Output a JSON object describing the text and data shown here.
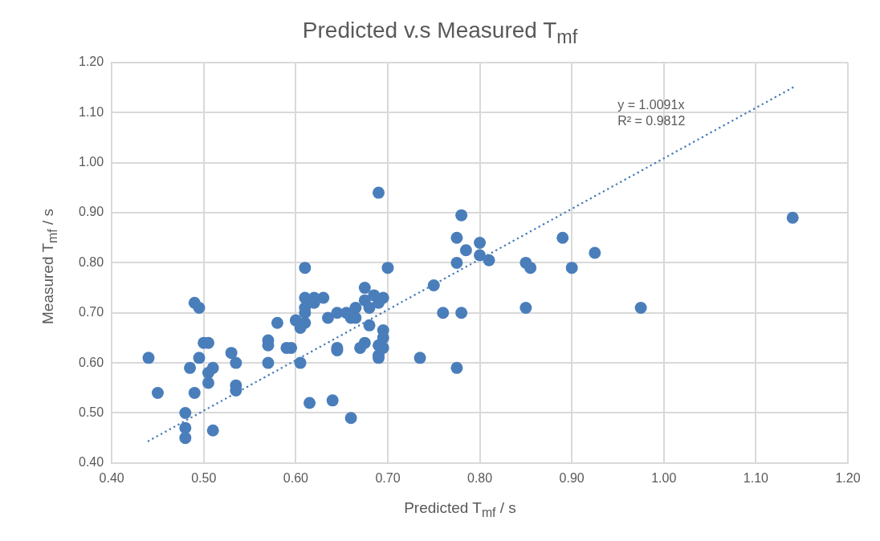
{
  "chart_data": {
    "type": "scatter",
    "title": "Predicted v.s Measured T$_{mf}$",
    "xlabel": "Predicted T$_{mf}$ / s",
    "ylabel": "Measured T$_{mf}$ / s",
    "xlim": [
      0.4,
      1.2
    ],
    "xticks": [
      {
        "value": 0.4,
        "label": "0.40"
      },
      {
        "value": 0.5,
        "label": "0.50"
      },
      {
        "value": 0.6,
        "label": "0.60"
      },
      {
        "value": 0.7,
        "label": "0.70"
      },
      {
        "value": 0.8,
        "label": "0.80"
      },
      {
        "value": 0.9,
        "label": "0.90"
      },
      {
        "value": 1.0,
        "label": "1.00"
      },
      {
        "value": 1.1,
        "label": "1.10"
      },
      {
        "value": 1.2,
        "label": "1.20"
      }
    ],
    "ylim": [
      0.4,
      1.2
    ],
    "yticks": [
      {
        "value": 0.4,
        "label": "0.40"
      },
      {
        "value": 0.5,
        "label": "0.50"
      },
      {
        "value": 0.6,
        "label": "0.60"
      },
      {
        "value": 0.7,
        "label": "0.70"
      },
      {
        "value": 0.8,
        "label": "0.80"
      },
      {
        "value": 0.9,
        "label": "0.90"
      },
      {
        "value": 1.0,
        "label": "1.00"
      },
      {
        "value": 1.1,
        "label": "1.10"
      },
      {
        "value": 1.2,
        "label": "1.20"
      }
    ],
    "grid": true,
    "legend": false,
    "annotations": [
      "y = 1.0091x",
      "R² = 0.9812"
    ],
    "series": [
      {
        "color": "#4a7ebb",
        "marker": "circle",
        "x": [
          0.44,
          0.45,
          0.48,
          0.48,
          0.48,
          0.485,
          0.49,
          0.49,
          0.495,
          0.495,
          0.5,
          0.505,
          0.505,
          0.505,
          0.51,
          0.51,
          0.53,
          0.535,
          0.535,
          0.535,
          0.57,
          0.57,
          0.57,
          0.58,
          0.59,
          0.595,
          0.6,
          0.605,
          0.605,
          0.61,
          0.61,
          0.61,
          0.61,
          0.61,
          0.615,
          0.62,
          0.62,
          0.63,
          0.635,
          0.64,
          0.645,
          0.645,
          0.645,
          0.655,
          0.66,
          0.66,
          0.665,
          0.665,
          0.67,
          0.675,
          0.675,
          0.675,
          0.68,
          0.68,
          0.685,
          0.69,
          0.69,
          0.69,
          0.69,
          0.695,
          0.695,
          0.695,
          0.695,
          0.69,
          0.7,
          0.735,
          0.75,
          0.76,
          0.775,
          0.775,
          0.775,
          0.78,
          0.78,
          0.785,
          0.8,
          0.8,
          0.81,
          0.85,
          0.85,
          0.855,
          0.89,
          0.9,
          0.925,
          0.975,
          1.14
        ],
        "values": [
          0.61,
          0.54,
          0.5,
          0.47,
          0.45,
          0.59,
          0.54,
          0.72,
          0.71,
          0.61,
          0.64,
          0.64,
          0.58,
          0.56,
          0.59,
          0.465,
          0.62,
          0.6,
          0.555,
          0.545,
          0.6,
          0.645,
          0.635,
          0.68,
          0.63,
          0.63,
          0.685,
          0.67,
          0.6,
          0.79,
          0.73,
          0.71,
          0.7,
          0.68,
          0.52,
          0.72,
          0.73,
          0.73,
          0.69,
          0.525,
          0.7,
          0.625,
          0.63,
          0.7,
          0.49,
          0.69,
          0.69,
          0.71,
          0.63,
          0.75,
          0.64,
          0.725,
          0.675,
          0.71,
          0.735,
          0.615,
          0.635,
          0.94,
          0.72,
          0.73,
          0.665,
          0.65,
          0.63,
          0.61,
          0.79,
          0.61,
          0.755,
          0.7,
          0.85,
          0.8,
          0.59,
          0.895,
          0.7,
          0.825,
          0.84,
          0.815,
          0.805,
          0.71,
          0.8,
          0.79,
          0.85,
          0.79,
          0.82,
          0.71,
          0.89
        ]
      },
      {
        "type": "line",
        "color": "#4a7ebb",
        "marker": "none",
        "line_style": "dotted",
        "x": [
          0.44,
          1.14
        ],
        "values": [
          0.444,
          1.15
        ]
      }
    ]
  }
}
